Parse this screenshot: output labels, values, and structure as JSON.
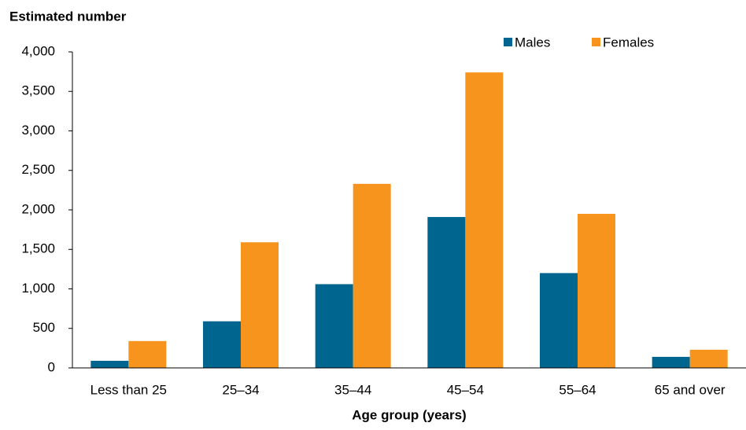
{
  "chart_data": {
    "type": "bar",
    "y_label": "Estimated number",
    "x_label": "Age group (years)",
    "categories": [
      "Less than 25",
      "25–34",
      "35–44",
      "45–54",
      "55–64",
      "65 and over"
    ],
    "series": [
      {
        "name": "Males",
        "color": "#00658f",
        "values": [
          90,
          590,
          1060,
          1910,
          1200,
          140
        ]
      },
      {
        "name": "Females",
        "color": "#f7941d",
        "values": [
          340,
          1590,
          2330,
          3740,
          1950,
          230
        ]
      }
    ],
    "ylim": [
      0,
      4000
    ],
    "yticks": [
      0,
      {
        "value": 500,
        "label": "500"
      },
      {
        "value": 1000,
        "label": "1,000"
      },
      {
        "value": 1500,
        "label": "1,500"
      },
      {
        "value": 2000,
        "label": "2,000"
      },
      {
        "value": 2500,
        "label": "2,500"
      },
      {
        "value": 3000,
        "label": "3,000"
      },
      {
        "value": 3500,
        "label": "3,500"
      },
      {
        "value": 4000,
        "label": "4,000"
      }
    ],
    "grid": false,
    "legend": "top-right"
  }
}
